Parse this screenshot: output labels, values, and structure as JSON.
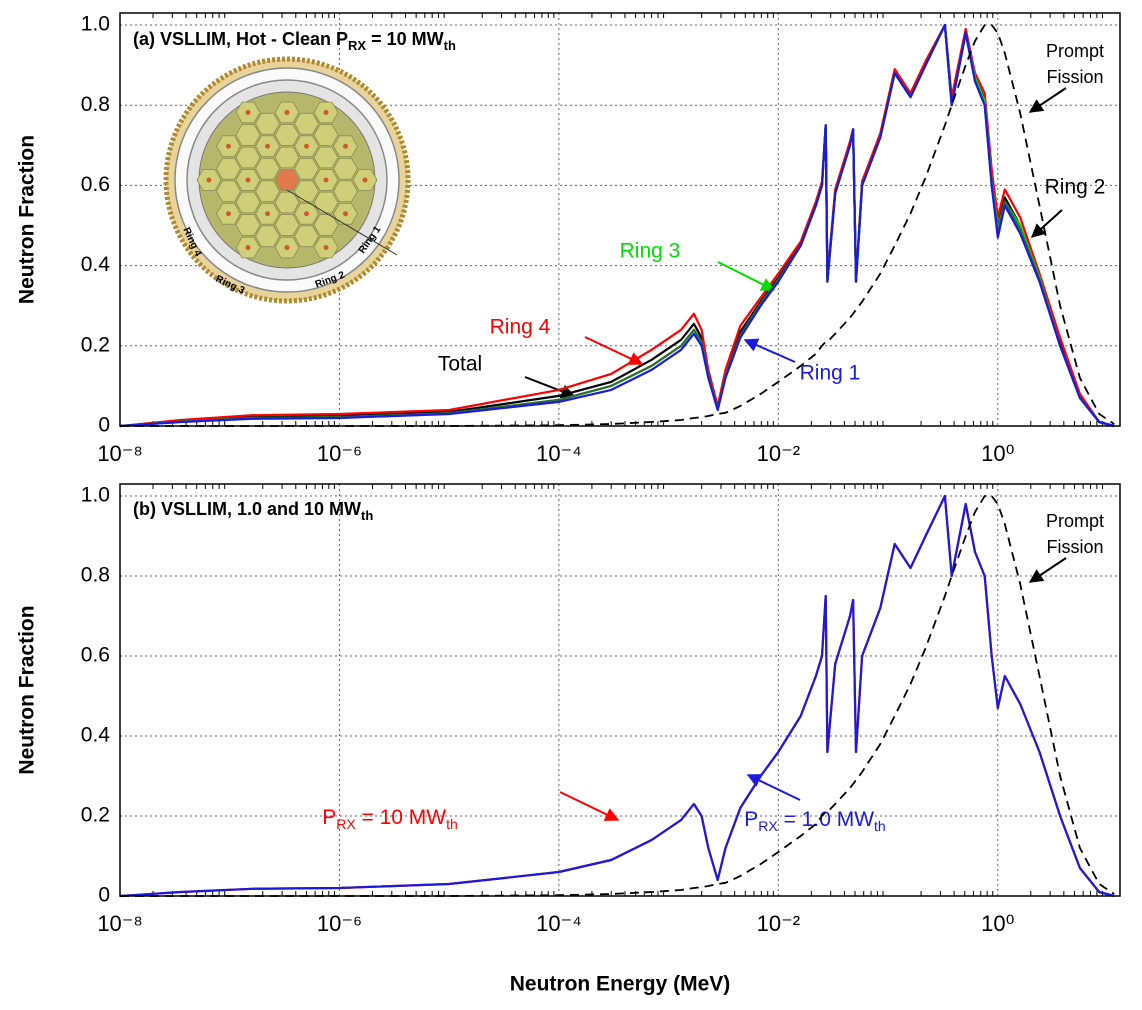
{
  "chart_data": [
    {
      "type": "line",
      "title": [
        {
          "text": "(a) VSLLIM, Hot - Clean P"
        },
        {
          "text": "RX",
          "sub": true
        },
        {
          "text": " = 10 MW"
        },
        {
          "text": "th",
          "sub": true
        }
      ],
      "ylabel": "Neutron Fraction",
      "log_x": true,
      "grid": true,
      "xlim": [
        1e-08,
        13
      ],
      "ylim": [
        0,
        1.03
      ],
      "xticks": [
        {
          "value": 1e-08,
          "label": "10⁻⁸"
        },
        {
          "value": 1e-06,
          "label": "10⁻⁶"
        },
        {
          "value": 0.0001,
          "label": "10⁻⁴"
        },
        {
          "value": 0.01,
          "label": "10⁻²"
        },
        {
          "value": 1,
          "label": "10⁰"
        }
      ],
      "yticks": [
        0,
        0.2,
        0.4,
        0.6,
        0.8,
        {
          "value": 1,
          "label": "1.0"
        }
      ],
      "inset_labels": [
        "Ring 1",
        "Ring 2",
        "Ring 3",
        "Ring 4"
      ],
      "annotations": [
        {
          "text": [
            "Prompt",
            "Fission"
          ]
        }
      ],
      "x": [
        1e-08,
        3.6e-08,
        1.6e-07,
        1e-06,
        1e-05,
        0.0001,
        0.0003,
        0.0007,
        0.0013,
        0.0017,
        0.002,
        0.0023,
        0.0028,
        0.0033,
        0.0045,
        0.0069,
        0.01,
        0.016,
        0.022,
        0.025,
        0.027,
        0.028,
        0.033,
        0.045,
        0.048,
        0.051,
        0.058,
        0.085,
        0.115,
        0.16,
        0.22,
        0.33,
        0.38,
        0.51,
        0.62,
        0.76,
        0.88,
        1,
        1.16,
        1.6,
        2.4,
        3.7,
        5.6,
        8.4,
        11.5
      ],
      "series": [
        {
          "name": "Total",
          "color": "#000000",
          "values": [
            0,
            0.012,
            0.022,
            0.025,
            0.035,
            0.075,
            0.11,
            0.165,
            0.215,
            0.255,
            0.22,
            0.13,
            0.045,
            0.13,
            0.235,
            0.31,
            0.37,
            0.455,
            0.555,
            0.6,
            0.75,
            0.365,
            0.585,
            0.705,
            0.74,
            0.365,
            0.605,
            0.725,
            0.885,
            0.825,
            0.905,
            1.0,
            0.81,
            0.985,
            0.87,
            0.815,
            0.62,
            0.495,
            0.57,
            0.5,
            0.37,
            0.21,
            0.075,
            0.01,
            0
          ]
        },
        {
          "name": "Ring 4",
          "color": "#ff0000",
          "values": [
            0,
            0.015,
            0.027,
            0.03,
            0.04,
            0.09,
            0.13,
            0.19,
            0.24,
            0.28,
            0.24,
            0.14,
            0.05,
            0.14,
            0.25,
            0.32,
            0.38,
            0.46,
            0.56,
            0.61,
            0.75,
            0.37,
            0.59,
            0.71,
            0.74,
            0.37,
            0.61,
            0.73,
            0.89,
            0.83,
            0.91,
            1.0,
            0.82,
            0.99,
            0.88,
            0.83,
            0.64,
            0.52,
            0.59,
            0.52,
            0.38,
            0.22,
            0.08,
            0.01,
            0
          ]
        },
        {
          "name": "Ring 3",
          "color": "#00dd00",
          "values": [
            0,
            0.011,
            0.02,
            0.022,
            0.032,
            0.065,
            0.1,
            0.15,
            0.2,
            0.24,
            0.21,
            0.125,
            0.042,
            0.125,
            0.225,
            0.305,
            0.365,
            0.45,
            0.55,
            0.6,
            0.75,
            0.36,
            0.58,
            0.7,
            0.74,
            0.36,
            0.6,
            0.72,
            0.88,
            0.82,
            0.9,
            1.0,
            0.8,
            0.98,
            0.87,
            0.81,
            0.61,
            0.49,
            0.56,
            0.5,
            0.37,
            0.2,
            0.07,
            0.01,
            0
          ]
        },
        {
          "name": "Ring 2",
          "color": "#2e6b2e",
          "values": [
            0,
            0.011,
            0.02,
            0.022,
            0.032,
            0.065,
            0.1,
            0.15,
            0.2,
            0.24,
            0.21,
            0.125,
            0.042,
            0.125,
            0.225,
            0.305,
            0.365,
            0.45,
            0.55,
            0.6,
            0.75,
            0.36,
            0.58,
            0.7,
            0.74,
            0.36,
            0.6,
            0.72,
            0.88,
            0.82,
            0.9,
            1.0,
            0.8,
            0.98,
            0.86,
            0.8,
            0.6,
            0.48,
            0.56,
            0.49,
            0.365,
            0.2,
            0.07,
            0.01,
            0
          ]
        },
        {
          "name": "Ring 1",
          "color": "#1a1ae0",
          "values": [
            0,
            0.01,
            0.018,
            0.02,
            0.03,
            0.06,
            0.09,
            0.14,
            0.19,
            0.23,
            0.2,
            0.12,
            0.04,
            0.12,
            0.22,
            0.3,
            0.36,
            0.45,
            0.55,
            0.6,
            0.75,
            0.36,
            0.58,
            0.7,
            0.74,
            0.36,
            0.6,
            0.72,
            0.88,
            0.82,
            0.9,
            1.0,
            0.8,
            0.98,
            0.86,
            0.8,
            0.6,
            0.47,
            0.55,
            0.48,
            0.36,
            0.2,
            0.07,
            0.01,
            0
          ]
        },
        {
          "color": "#000000",
          "dash": true,
          "values": [
            0,
            0,
            0,
            0,
            0,
            0.002,
            0.005,
            0.01,
            0.015,
            0.02,
            0.022,
            0.025,
            0.03,
            0.033,
            0.05,
            0.08,
            0.11,
            0.15,
            0.18,
            0.2,
            0.21,
            0.21,
            0.23,
            0.27,
            0.28,
            0.29,
            0.31,
            0.38,
            0.45,
            0.53,
            0.62,
            0.75,
            0.8,
            0.9,
            0.96,
            1.0,
            1.0,
            0.98,
            0.93,
            0.78,
            0.55,
            0.3,
            0.12,
            0.03,
            0.005
          ]
        }
      ]
    },
    {
      "type": "line",
      "title": [
        {
          "text": "(b) VSLLIM, 1.0 and 10 MW"
        },
        {
          "text": "th",
          "sub": true
        }
      ],
      "ylabel": "Neutron Fraction",
      "xlabel": "Neutron Energy (MeV)",
      "log_x": true,
      "grid": true,
      "xlim": [
        1e-08,
        13
      ],
      "ylim": [
        0,
        1.03
      ],
      "xticks": [
        {
          "value": 1e-08,
          "label": "10⁻⁸"
        },
        {
          "value": 1e-06,
          "label": "10⁻⁶"
        },
        {
          "value": 0.0001,
          "label": "10⁻⁴"
        },
        {
          "value": 0.01,
          "label": "10⁻²"
        },
        {
          "value": 1,
          "label": "10⁰"
        }
      ],
      "yticks": [
        0,
        0.2,
        0.4,
        0.6,
        0.8,
        {
          "value": 1,
          "label": "1.0"
        }
      ],
      "annotations": [
        {
          "text": [
            "Prompt",
            "Fission"
          ]
        }
      ],
      "x": [
        1e-08,
        3.6e-08,
        1.6e-07,
        1e-06,
        1e-05,
        0.0001,
        0.0003,
        0.0007,
        0.0013,
        0.0017,
        0.002,
        0.0023,
        0.0028,
        0.0033,
        0.0045,
        0.0069,
        0.01,
        0.016,
        0.022,
        0.025,
        0.027,
        0.028,
        0.033,
        0.045,
        0.048,
        0.051,
        0.058,
        0.085,
        0.115,
        0.16,
        0.22,
        0.33,
        0.38,
        0.51,
        0.62,
        0.76,
        0.88,
        1,
        1.16,
        1.6,
        2.4,
        3.7,
        5.6,
        8.4,
        11.5
      ],
      "series": [
        {
          "name": [
            {
              "text": "P"
            },
            {
              "text": "RX",
              "sub": true
            },
            {
              "text": " = 10 MW"
            },
            {
              "text": "th",
              "sub": true
            }
          ],
          "color": "#ff0000",
          "values": [
            0,
            0.01,
            0.018,
            0.02,
            0.03,
            0.06,
            0.09,
            0.14,
            0.19,
            0.23,
            0.2,
            0.12,
            0.04,
            0.12,
            0.22,
            0.3,
            0.36,
            0.45,
            0.55,
            0.6,
            0.75,
            0.36,
            0.58,
            0.7,
            0.74,
            0.36,
            0.6,
            0.72,
            0.88,
            0.82,
            0.9,
            1.0,
            0.8,
            0.98,
            0.86,
            0.8,
            0.6,
            0.47,
            0.55,
            0.48,
            0.36,
            0.2,
            0.07,
            0.01,
            0
          ]
        },
        {
          "name": [
            {
              "text": "P"
            },
            {
              "text": "RX",
              "sub": true
            },
            {
              "text": " = 1.0 MW"
            },
            {
              "text": "th",
              "sub": true
            }
          ],
          "color": "#1a1ae0",
          "values": [
            0,
            0.01,
            0.018,
            0.02,
            0.03,
            0.06,
            0.09,
            0.14,
            0.19,
            0.23,
            0.2,
            0.12,
            0.04,
            0.12,
            0.22,
            0.3,
            0.36,
            0.45,
            0.55,
            0.6,
            0.75,
            0.36,
            0.58,
            0.7,
            0.74,
            0.36,
            0.6,
            0.72,
            0.88,
            0.82,
            0.9,
            1.0,
            0.8,
            0.98,
            0.86,
            0.8,
            0.6,
            0.47,
            0.55,
            0.48,
            0.36,
            0.2,
            0.07,
            0.01,
            0
          ]
        },
        {
          "color": "#000000",
          "dash": true,
          "values": [
            0,
            0,
            0,
            0,
            0,
            0.002,
            0.005,
            0.01,
            0.015,
            0.02,
            0.022,
            0.025,
            0.03,
            0.033,
            0.05,
            0.08,
            0.11,
            0.15,
            0.18,
            0.2,
            0.21,
            0.21,
            0.23,
            0.27,
            0.28,
            0.29,
            0.31,
            0.38,
            0.45,
            0.53,
            0.62,
            0.75,
            0.8,
            0.9,
            0.96,
            1.0,
            1.0,
            0.98,
            0.93,
            0.78,
            0.55,
            0.3,
            0.12,
            0.03,
            0.005
          ]
        }
      ]
    }
  ]
}
